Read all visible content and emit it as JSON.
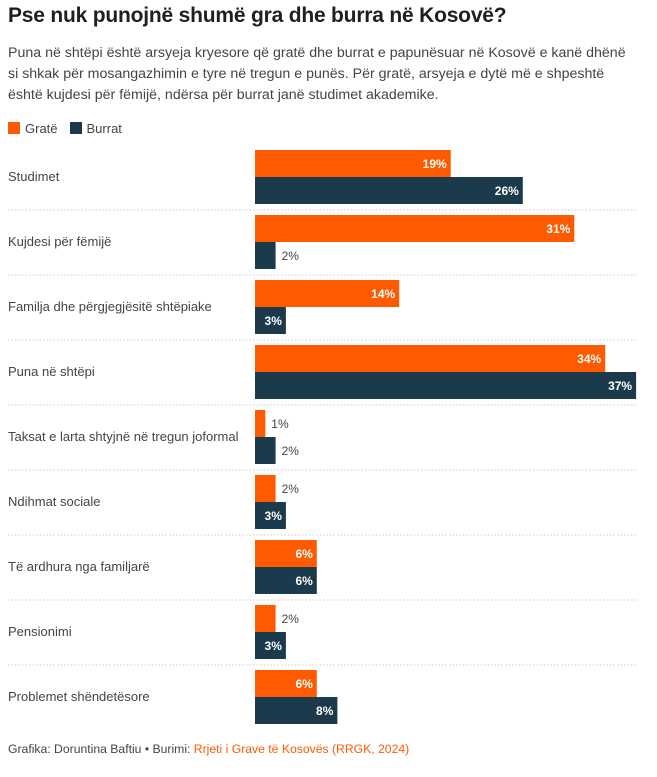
{
  "title": "Pse nuk punojnë shumë gra dhe burra në Kosovë?",
  "subtitle": "Puna në shtëpi është arsyeja kryesore që gratë dhe burrat e papunësuar në Kosovë e kanë dhënë si shkak për mosangazhimin e tyre në tregun e punës. Për gratë, arsyeja e dytë më e shpeshtë është kujdesi për fëmijë, ndërsa për burrat janë studimet akademike.",
  "footer": {
    "credit": "Grafika: Doruntina Baftiu • Burimi: ",
    "source": "Rrjeti i Grave të Kosovës (RRGK, 2024)"
  },
  "colors": {
    "women": "#ff5a00",
    "men": "#1b3a4b",
    "grid": "#cccccc"
  },
  "chart_data": {
    "type": "bar",
    "orientation": "horizontal",
    "categories": [
      "Studimet",
      "Kujdesi për fëmijë",
      "Familja dhe përgjegjësitë shtëpiake",
      "Puna në shtëpi",
      "Taksat e larta shtyjnë në tregun joformal",
      "Ndihmat sociale",
      "Të ardhura nga familjarë",
      "Pensionimi",
      "Problemet shëndetësore"
    ],
    "series": [
      {
        "name": "Gratë",
        "values": [
          19,
          31,
          14,
          34,
          1,
          2,
          6,
          2,
          6
        ]
      },
      {
        "name": "Burrat",
        "values": [
          26,
          2,
          3,
          37,
          2,
          3,
          6,
          3,
          8
        ]
      }
    ],
    "value_suffix": "%",
    "xlim": [
      0,
      45
    ],
    "legend": "top-left",
    "grid": false
  }
}
